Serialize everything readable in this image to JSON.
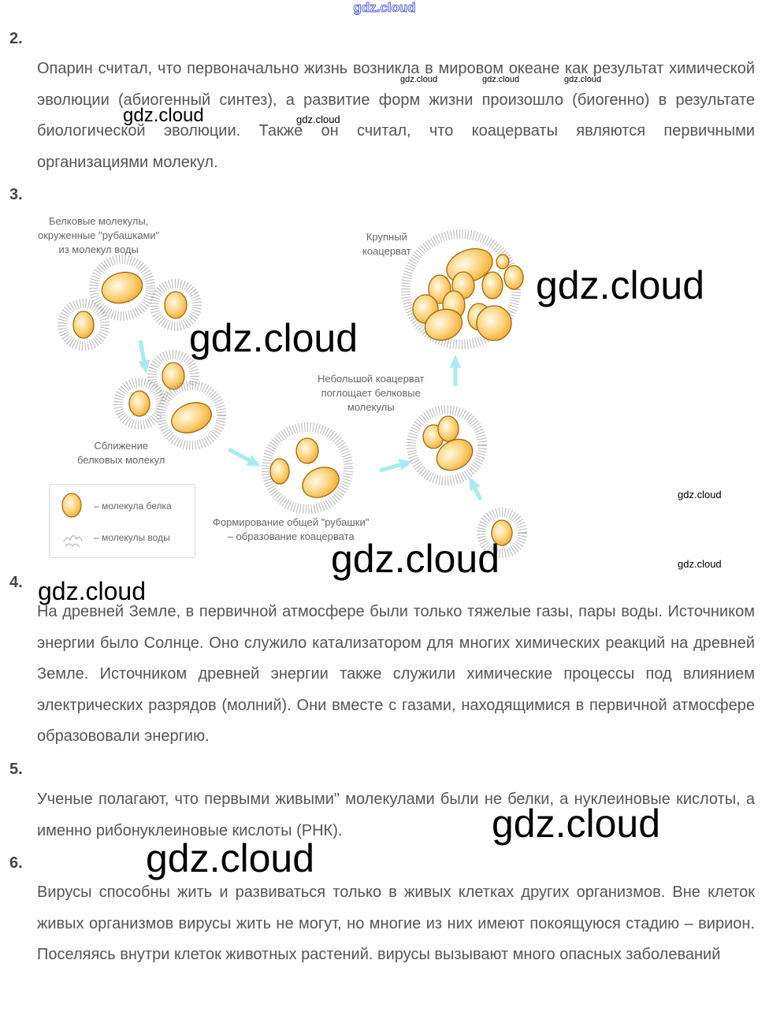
{
  "header": {
    "watermark": "gdz.cloud"
  },
  "sections": [
    {
      "number": "2.",
      "text": "Опарин считал, что первоначально жизнь возникла в мировом океане как результат химической эволюции (абиогенный синтез), а развитие форм жизни произошло (биогенно) в результате биологической эволюции. Также он считал, что коацерваты являются первичными организациями молекул."
    },
    {
      "number": "3."
    },
    {
      "number": "4.",
      "text": "На древней Земле, в первичной атмосфере были только тяжелые газы, пары воды. Источником энергии было Солнце. Оно служило катализатором для многих химических реакций на древней Земле. Источником древней энергии также служили химические процессы под влиянием электрических разрядов (молний). Они вместе с газами, находящимися в первичной атмосфере образововали энергию."
    },
    {
      "number": "5.",
      "text": "Ученые полагают, что первыми живыми\" молекулами были не белки, а нуклеиновые кислоты, а именно рибонуклеиновые кислоты (РНК)."
    },
    {
      "number": "6.",
      "text": "Вирусы способны жить и развиваться только в живых клетках других организмов. Вне клеток живых организмов вирусы жить не могут, но многие из них имеют покоящуюся стадию – вирион. Поселяясь внутри клеток животных растений. вирусы вызывают много опасных заболеваний"
    }
  ],
  "diagram": {
    "label_proteins": [
      "Белковые молекулы,",
      "окруженные \"рубашками\"",
      "из молекул воды"
    ],
    "label_large": [
      "Крупный",
      "коацерват"
    ],
    "label_small": [
      "Небольшой коацерват",
      "поглощает белковые",
      "молекулы"
    ],
    "label_approach": [
      "Сближение",
      "белковых молекул"
    ],
    "label_forming": [
      "Формирование общей \"рубашки\"",
      "– образование коацервата"
    ],
    "legend": {
      "protein": "– молекула белка",
      "water": "– молекулы воды"
    },
    "colors": {
      "protein": "#f5b840",
      "arrow": "#a8ecf2",
      "shell": "#999999"
    }
  },
  "watermarks": [
    "gdz.cloud"
  ]
}
